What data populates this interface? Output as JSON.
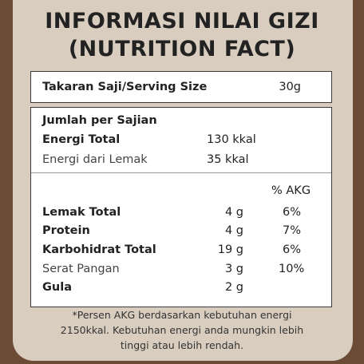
{
  "title": {
    "line1": "INFORMASI NILAI GIZI",
    "line2": "(NUTRITION FACT)"
  },
  "serving": {
    "label": "Takaran Saji/Serving Size",
    "value": "30g"
  },
  "per_serving": {
    "heading": "Jumlah per Sajian",
    "energy_total_label": "Energi Total",
    "energy_total_value": "130 kkal",
    "energy_fat_label": "Energi dari Lemak",
    "energy_fat_value": "35 kkal"
  },
  "akg_header": "% AKG",
  "nutrients": [
    {
      "label": "Lemak Total",
      "amount": "4 g",
      "akg": "6%"
    },
    {
      "label": "Protein",
      "amount": "4 g",
      "akg": "7%"
    },
    {
      "label": "Karbohidrat Total",
      "amount": "19 g",
      "akg": "6%"
    },
    {
      "label": "Serat Pangan",
      "amount": "3 g",
      "akg": "10%"
    },
    {
      "label": "Gula",
      "amount": "2 g",
      "akg": ""
    }
  ],
  "footnote": {
    "line1": "*Persen AKG berdasarkan kebutuhan energi",
    "line2": "2150kkal. Kebutuhan energi anda mungkin lebih",
    "line3": "tinggi atau lebih rendah."
  }
}
